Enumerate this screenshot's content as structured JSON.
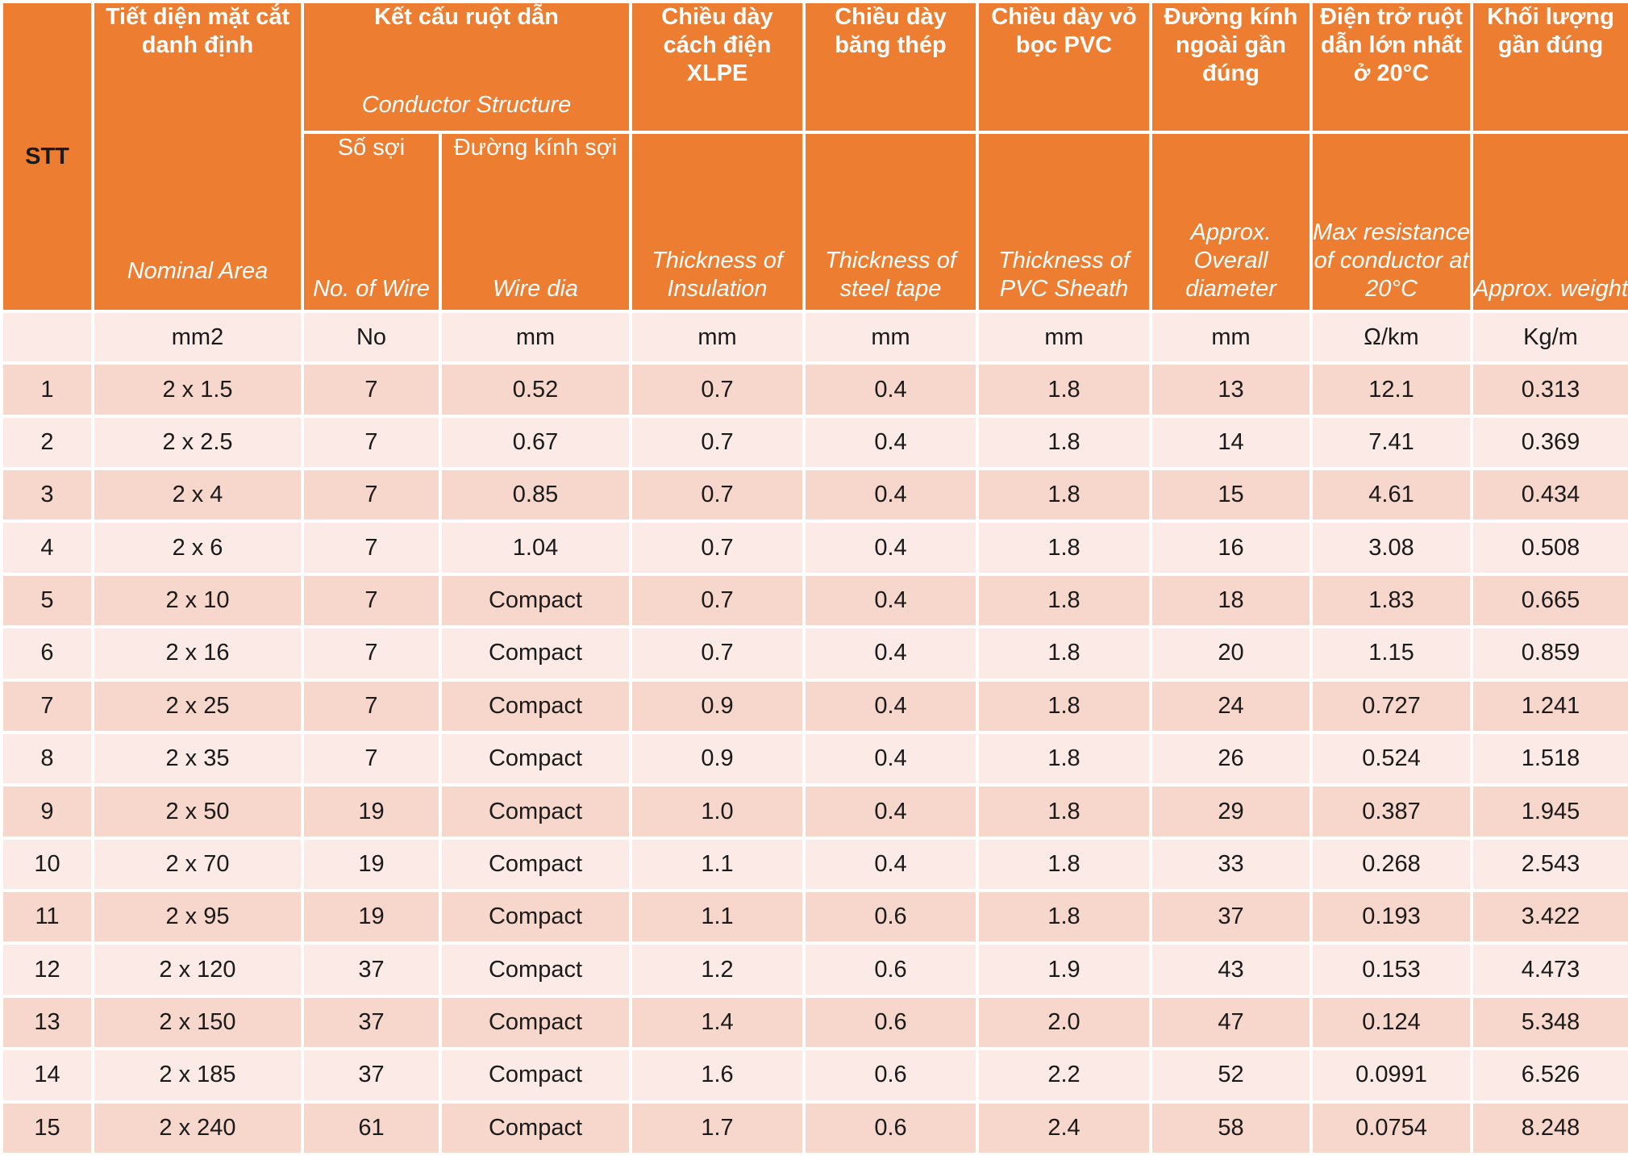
{
  "headers": {
    "stt": "STT",
    "nominal_area": {
      "vn": "Tiết diện mặt cắt danh định",
      "en": "Nominal Area"
    },
    "conductor_structure": {
      "vn": "Kết cấu ruột dẫn",
      "en": "Conductor Structure"
    },
    "no_of_wire": {
      "vn": "Số sợi",
      "en": "No. of Wire"
    },
    "wire_dia": {
      "vn": "Đường kính sợi",
      "en": "Wire dia"
    },
    "insulation": {
      "vn": "Chiều dày cách điện XLPE",
      "en": "Thickness of Insulation"
    },
    "steel_tape": {
      "vn": "Chiều dày băng thép",
      "en": "Thickness of steel tape"
    },
    "pvc_sheath": {
      "vn": "Chiều dày vỏ bọc PVC",
      "en": "Thickness of PVC Sheath"
    },
    "overall_diameter": {
      "vn": "Đường kính ngoài gần đúng",
      "en": "Approx. Overall diameter"
    },
    "resistance": {
      "vn": "Điện trở ruột dẫn lớn nhất ở 20°C",
      "en": "Max resistance of conductor at 20°C"
    },
    "weight": {
      "vn": "Khối lượng gần đúng",
      "en": "Approx. weight"
    }
  },
  "units": [
    "",
    "mm2",
    "No",
    "mm",
    "mm",
    "mm",
    "mm",
    "mm",
    "Ω/km",
    "Kg/m"
  ],
  "rows": [
    [
      "1",
      "2 x 1.5",
      "7",
      "0.52",
      "0.7",
      "0.4",
      "1.8",
      "13",
      "12.1",
      "0.313"
    ],
    [
      "2",
      "2 x 2.5",
      "7",
      "0.67",
      "0.7",
      "0.4",
      "1.8",
      "14",
      "7.41",
      "0.369"
    ],
    [
      "3",
      "2 x 4",
      "7",
      "0.85",
      "0.7",
      "0.4",
      "1.8",
      "15",
      "4.61",
      "0.434"
    ],
    [
      "4",
      "2 x 6",
      "7",
      "1.04",
      "0.7",
      "0.4",
      "1.8",
      "16",
      "3.08",
      "0.508"
    ],
    [
      "5",
      "2 x 10",
      "7",
      "Compact",
      "0.7",
      "0.4",
      "1.8",
      "18",
      "1.83",
      "0.665"
    ],
    [
      "6",
      "2 x 16",
      "7",
      "Compact",
      "0.7",
      "0.4",
      "1.8",
      "20",
      "1.15",
      "0.859"
    ],
    [
      "7",
      "2 x 25",
      "7",
      "Compact",
      "0.9",
      "0.4",
      "1.8",
      "24",
      "0.727",
      "1.241"
    ],
    [
      "8",
      "2 x 35",
      "7",
      "Compact",
      "0.9",
      "0.4",
      "1.8",
      "26",
      "0.524",
      "1.518"
    ],
    [
      "9",
      "2 x 50",
      "19",
      "Compact",
      "1.0",
      "0.4",
      "1.8",
      "29",
      "0.387",
      "1.945"
    ],
    [
      "10",
      "2 x 70",
      "19",
      "Compact",
      "1.1",
      "0.4",
      "1.8",
      "33",
      "0.268",
      "2.543"
    ],
    [
      "11",
      "2 x 95",
      "19",
      "Compact",
      "1.1",
      "0.6",
      "1.8",
      "37",
      "0.193",
      "3.422"
    ],
    [
      "12",
      "2 x 120",
      "37",
      "Compact",
      "1.2",
      "0.6",
      "1.9",
      "43",
      "0.153",
      "4.473"
    ],
    [
      "13",
      "2 x 150",
      "37",
      "Compact",
      "1.4",
      "0.6",
      "2.0",
      "47",
      "0.124",
      "5.348"
    ],
    [
      "14",
      "2 x 185",
      "37",
      "Compact",
      "1.6",
      "0.6",
      "2.2",
      "52",
      "0.0991",
      "6.526"
    ],
    [
      "15",
      "2 x 240",
      "61",
      "Compact",
      "1.7",
      "0.6",
      "2.4",
      "58",
      "0.0754",
      "8.248"
    ]
  ],
  "colors": {
    "header": "#ED7D31",
    "row_dark": "#F7D6CC",
    "row_light": "#FBEAE6"
  }
}
